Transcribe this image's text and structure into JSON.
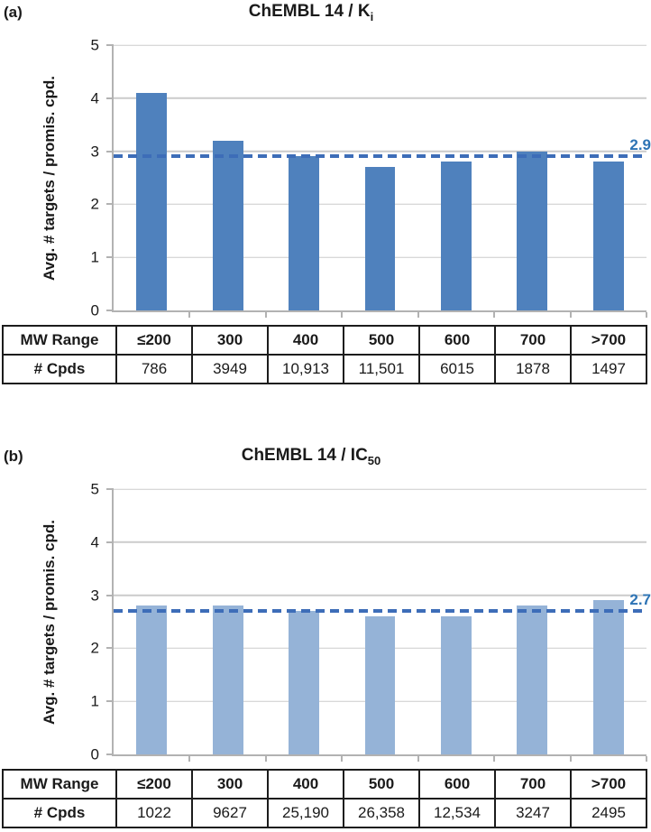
{
  "figure": {
    "background": "#ffffff",
    "text_color": "#1a1a1a",
    "gridline_color": "#cbcbcb",
    "axis_color": "#b2b2b2"
  },
  "chart_data": [
    {
      "type": "bar",
      "panel_label": "(a)",
      "title": "ChEMBL 14 / Ki",
      "title_main": "ChEMBL 14 / K",
      "title_sub": "i",
      "ylabel": "Avg. # targets / promis. cpd.",
      "ylim": [
        0,
        5
      ],
      "yticks": [
        0,
        1,
        2,
        3,
        4,
        5
      ],
      "grid": true,
      "legend_position": "none",
      "categories": [
        "≤200",
        "300",
        "400",
        "500",
        "600",
        "700",
        ">700"
      ],
      "values": [
        4.1,
        3.2,
        2.9,
        2.7,
        2.8,
        3.0,
        2.8
      ],
      "bar_color": "#4f81bd",
      "ref_line": {
        "value": 2.9,
        "label": "2.9",
        "style": "dashed",
        "color": "#3d6db8",
        "label_color": "#2e74b5"
      },
      "table": {
        "row_headers": [
          "MW Range",
          "# Cpds"
        ],
        "rows": [
          [
            "≤200",
            "300",
            "400",
            "500",
            "600",
            "700",
            ">700"
          ],
          [
            "786",
            "3949",
            "10,913",
            "11,501",
            "6015",
            "1878",
            "1497"
          ]
        ]
      }
    },
    {
      "type": "bar",
      "panel_label": "(b)",
      "title": "ChEMBL 14 / IC50",
      "title_main": "ChEMBL 14 / IC",
      "title_sub": "50",
      "ylabel": "Avg. # targets / promis. cpd.",
      "ylim": [
        0,
        5
      ],
      "yticks": [
        0,
        1,
        2,
        3,
        4,
        5
      ],
      "grid": true,
      "legend_position": "none",
      "categories": [
        "≤200",
        "300",
        "400",
        "500",
        "600",
        "700",
        ">700"
      ],
      "values": [
        2.8,
        2.8,
        2.7,
        2.6,
        2.6,
        2.8,
        2.9
      ],
      "bar_color": "#95b3d7",
      "ref_line": {
        "value": 2.7,
        "label": "2.7",
        "style": "dashed",
        "color": "#3d6db8",
        "label_color": "#2e74b5"
      },
      "table": {
        "row_headers": [
          "MW Range",
          "# Cpds"
        ],
        "rows": [
          [
            "≤200",
            "300",
            "400",
            "500",
            "600",
            "700",
            ">700"
          ],
          [
            "1022",
            "9627",
            "25,190",
            "26,358",
            "12,534",
            "3247",
            "2495"
          ]
        ]
      }
    }
  ]
}
